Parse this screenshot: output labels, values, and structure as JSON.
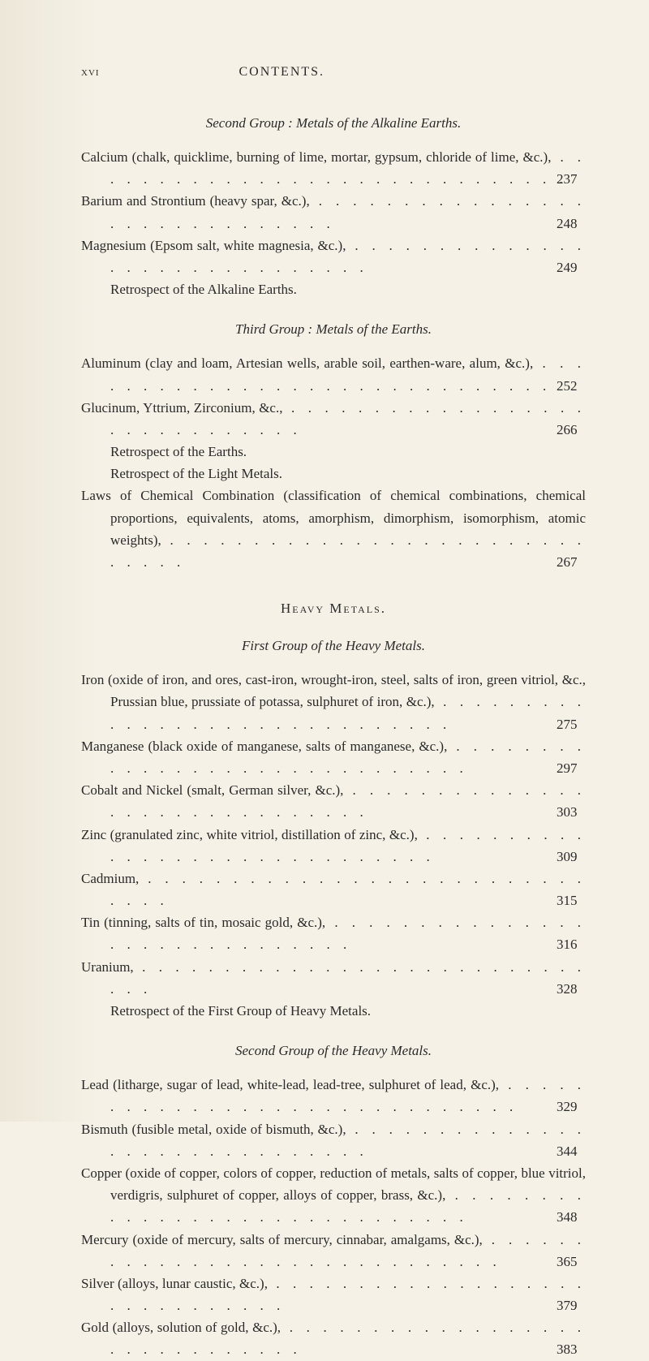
{
  "header": {
    "page_number": "xvi",
    "label": "CONTENTS."
  },
  "sections": [
    {
      "title": "Second Group : Metals of the Alkaline Earths.",
      "entries": [
        {
          "text": "Calcium (chalk, quicklime, burning of lime, mortar, gypsum, chloride of lime, &c.),",
          "page": "237"
        },
        {
          "text": "Barium and Strontium (heavy spar, &c.),",
          "page": "248"
        },
        {
          "text": "Magnesium (Epsom salt, white magnesia, &c.),",
          "page": "249"
        },
        {
          "text": "Retrospect of the Alkaline Earths.",
          "page": "",
          "sub": true
        }
      ]
    },
    {
      "title": "Third Group : Metals of the Earths.",
      "entries": [
        {
          "text": "Aluminum (clay and loam, Artesian wells, arable soil, earthen-ware, alum, &c.),",
          "page": "252"
        },
        {
          "text": "Glucinum, Yttrium, Zirconium, &c.,",
          "page": "266"
        },
        {
          "text": "Retrospect of the Earths.",
          "page": "",
          "sub": true
        },
        {
          "text": "Retrospect of the Light Metals.",
          "page": "",
          "sub": true
        },
        {
          "text": "Laws of Chemical Combination (classification of chemical combina­tions, chemical proportions, equivalents, atoms, amorphism, dimor­phism, isomorphism, atomic weights),",
          "page": "267"
        }
      ]
    }
  ],
  "heavy_heading": "Heavy Metals.",
  "heavy_sections": [
    {
      "title": "First Group of the Heavy Metals.",
      "entries": [
        {
          "text": "Iron (oxide of iron, and ores, cast-iron, wrought-iron, steel, salts of iron, green vitriol, &c., Prussian blue, prussiate of potassa, sulphu­ret of iron, &c.),",
          "page": "275"
        },
        {
          "text": "Manganese (black oxide of manganese, salts of manganese, &c.),",
          "page": "297"
        },
        {
          "text": "Cobalt and Nickel (smalt, German silver, &c.),",
          "page": "303"
        },
        {
          "text": "Zinc (granulated zinc, white vitriol, distillation of zinc, &c.),",
          "page": "309"
        },
        {
          "text": "Cadmium,",
          "page": "315"
        },
        {
          "text": "Tin (tinning, salts of tin, mosaic gold, &c.),",
          "page": "316"
        },
        {
          "text": "Uranium,",
          "page": "328"
        },
        {
          "text": "Retrospect of the First Group of Heavy Metals.",
          "page": "",
          "sub": true
        }
      ]
    },
    {
      "title": "Second Group of the Heavy Metals.",
      "entries": [
        {
          "text": "Lead (litharge, sugar of lead, white-lead, lead-tree, sulphuret of lead, &c.),",
          "page": "329"
        },
        {
          "text": "Bismuth (fusible metal, oxide of bismuth, &c.),",
          "page": "344"
        },
        {
          "text": "Copper (oxide of copper, colors of copper, reduction of metals, salts of copper, blue vitriol, verdigris, sulphuret of copper, alloys of copper, brass, &c.),",
          "page": "348"
        },
        {
          "text": "Mercury (oxide of mercury, salts of mercury, cinnabar, amalgams, &c.),",
          "page": "365"
        },
        {
          "text": "Silver (alloys, lunar caustic, &c.),",
          "page": "379"
        },
        {
          "text": "Gold (alloys, solution of gold, &c.),",
          "page": "383"
        }
      ]
    }
  ]
}
